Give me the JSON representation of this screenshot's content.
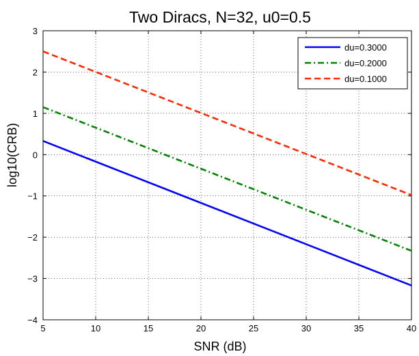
{
  "chart_data": {
    "type": "line",
    "title": "Two Diracs, N=32, u0=0.5",
    "xlabel": "SNR (dB)",
    "ylabel": "log10(CRB)",
    "xlim": [
      5,
      40
    ],
    "ylim": [
      -4,
      3
    ],
    "xticks": [
      5,
      10,
      15,
      20,
      25,
      30,
      35,
      40
    ],
    "yticks": [
      -4,
      -3,
      -2,
      -1,
      0,
      1,
      2,
      3
    ],
    "grid": true,
    "legend_position": "top-right",
    "series": [
      {
        "name": "du=0.3000",
        "x": [
          5,
          40
        ],
        "y": [
          0.33,
          -3.17
        ],
        "color": "#0000ff",
        "style": "solid"
      },
      {
        "name": "du=0.2000",
        "x": [
          5,
          40
        ],
        "y": [
          1.15,
          -2.33
        ],
        "color": "#008000",
        "style": "dashdot"
      },
      {
        "name": "du=0.1000",
        "x": [
          5,
          40
        ],
        "y": [
          2.5,
          -0.98
        ],
        "color": "#ff2a00",
        "style": "dashed"
      }
    ]
  }
}
